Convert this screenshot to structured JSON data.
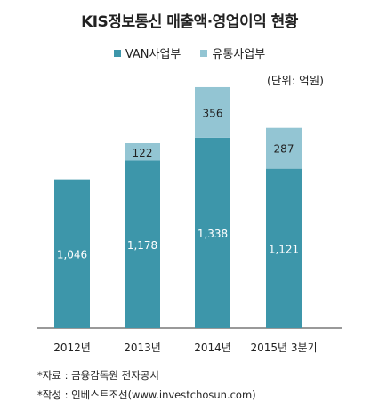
{
  "chart_data": {
    "type": "bar",
    "stacked": true,
    "title": "KIS정보통신 매출액·영업이익 현황",
    "unit_label": "(단위: 억원)",
    "categories": [
      "2012년",
      "2013년",
      "2014년",
      "2015년 3분기"
    ],
    "series": [
      {
        "name": "VAN사업부",
        "values": [
          1046,
          1178,
          1338,
          1121
        ],
        "color": "#3d96aa"
      },
      {
        "name": "유통사업부",
        "values": [
          null,
          122,
          356,
          287
        ],
        "color": "#93c5d3"
      }
    ],
    "value_labels": {
      "VAN사업부": [
        "1,046",
        "1,178",
        "1,338",
        "1,121"
      ],
      "유통사업부": [
        "",
        "122",
        "356",
        "287"
      ]
    },
    "ylim": [
      0,
      1750
    ],
    "grid": false,
    "legend_position": "top-center"
  },
  "source": {
    "line1": "*자료 : 금융감독원 전자공시",
    "line2": "*작성 : 인베스트조선(www.investchosun.com)"
  }
}
